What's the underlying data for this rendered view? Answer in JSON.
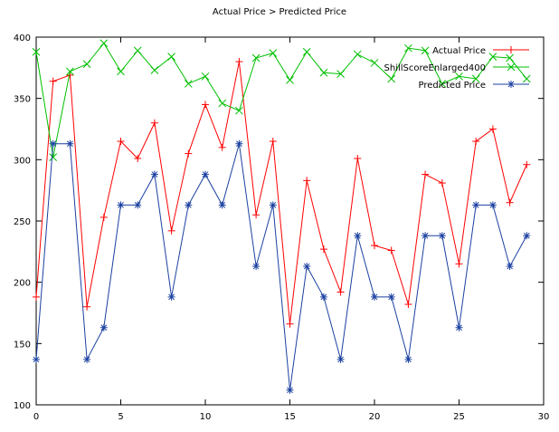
{
  "chart_data": {
    "type": "line",
    "title": "Actual Price > Predicted Price",
    "xlabel": "",
    "ylabel": "",
    "xlim": [
      0,
      30
    ],
    "ylim": [
      100,
      400
    ],
    "x_ticks": [
      0,
      5,
      10,
      15,
      20,
      25,
      30
    ],
    "y_ticks": [
      100,
      150,
      200,
      250,
      300,
      350,
      400
    ],
    "grid": false,
    "legend_position": "top-right",
    "x": [
      0,
      1,
      2,
      3,
      4,
      5,
      6,
      7,
      8,
      9,
      10,
      11,
      12,
      13,
      14,
      15,
      16,
      17,
      18,
      19,
      20,
      21,
      22,
      23,
      24,
      25,
      26,
      27,
      28,
      29
    ],
    "series": [
      {
        "name": "Actual Price",
        "color": "#ff0000",
        "marker": "plus",
        "values": [
          188,
          364,
          369,
          180,
          253,
          315,
          301,
          330,
          242,
          305,
          345,
          310,
          380,
          255,
          315,
          166,
          283,
          227,
          192,
          301,
          230,
          226,
          182,
          288,
          281,
          215,
          315,
          325,
          265,
          296
        ]
      },
      {
        "name": "ShillScoreEnlarged400",
        "color": "#00c000",
        "marker": "cross",
        "values": [
          388,
          302,
          372,
          378,
          395,
          372,
          389,
          373,
          384,
          362,
          368,
          346,
          340,
          383,
          387,
          365,
          388,
          371,
          370,
          386,
          379,
          366,
          391,
          389,
          362,
          368,
          366,
          384,
          383,
          366
        ]
      },
      {
        "name": "Predicted Price",
        "color": "#1a40a0",
        "marker": "star",
        "values": [
          137,
          313,
          313,
          137,
          163,
          263,
          263,
          288,
          188,
          263,
          288,
          263,
          313,
          213,
          263,
          112,
          213,
          188,
          137,
          238,
          188,
          188,
          137,
          238,
          238,
          163,
          263,
          263,
          213,
          238
        ]
      }
    ]
  }
}
